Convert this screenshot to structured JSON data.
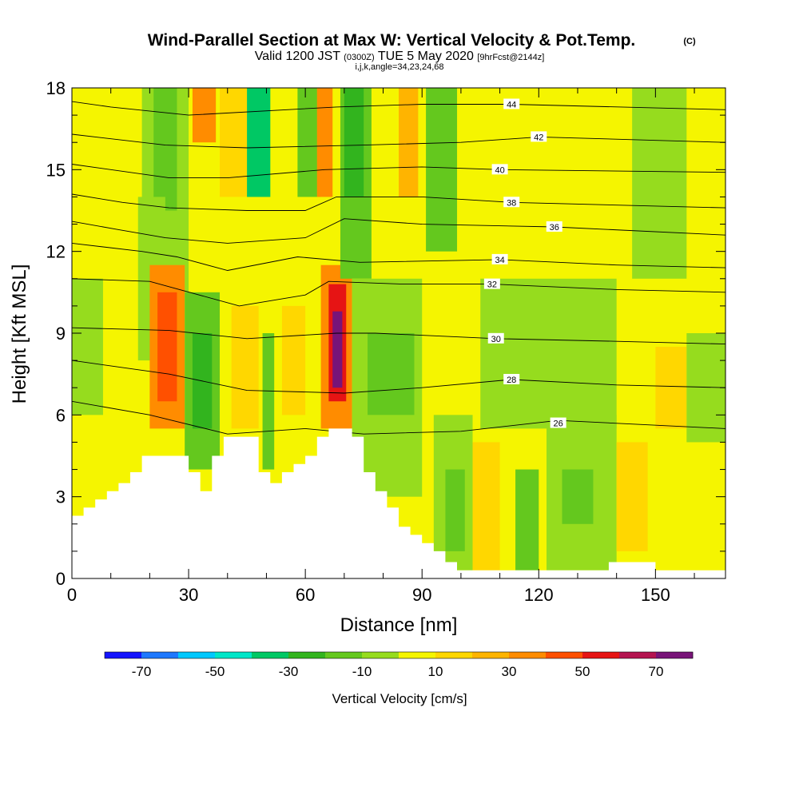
{
  "chart_data": {
    "type": "heatmap",
    "title": "Wind-Parallel Section at Max W: Vertical Velocity & Pot.Temp.",
    "title_mark": "(C)",
    "subtitle_parts": [
      "Valid 1200 JST",
      "(0300Z)",
      "TUE 5 May 2020",
      "[9hrFcst@2144z]"
    ],
    "subtitle2": "i,j,k,angle=34,23,24,68",
    "xlabel": "Distance [nm]",
    "ylabel": "Height [Kft MSL]",
    "xlim": [
      0,
      168
    ],
    "ylim": [
      0,
      18
    ],
    "xticks": [
      0,
      30,
      60,
      90,
      120,
      150
    ],
    "yticks": [
      0,
      3,
      6,
      9,
      12,
      15,
      18
    ],
    "colorbar": {
      "label": "Vertical Velocity [cm/s]",
      "levels": [
        -80,
        -70,
        -60,
        -50,
        -40,
        -30,
        -20,
        -10,
        0,
        10,
        20,
        30,
        40,
        50,
        60,
        70,
        80
      ],
      "tick_values": [
        -70,
        -50,
        -30,
        -10,
        10,
        30,
        50,
        70
      ],
      "tick_labels": [
        "-70",
        "-50",
        "-30",
        "-10",
        "10",
        "30",
        "50",
        "70"
      ],
      "colors": [
        "#1414ff",
        "#1e78ff",
        "#00c8ff",
        "#00e6c8",
        "#00c864",
        "#32b41e",
        "#64c81e",
        "#96dc1e",
        "#f5f500",
        "#ffd700",
        "#ffb400",
        "#ff8c00",
        "#ff5000",
        "#e61414",
        "#b41450",
        "#781478"
      ]
    },
    "terrain": [
      [
        0,
        2.3
      ],
      [
        3,
        2.3
      ],
      [
        3,
        2.6
      ],
      [
        6,
        2.6
      ],
      [
        6,
        2.9
      ],
      [
        9,
        2.9
      ],
      [
        9,
        3.2
      ],
      [
        12,
        3.2
      ],
      [
        12,
        3.5
      ],
      [
        15,
        3.5
      ],
      [
        15,
        3.9
      ],
      [
        18,
        3.9
      ],
      [
        18,
        4.5
      ],
      [
        30,
        4.5
      ],
      [
        30,
        3.9
      ],
      [
        33,
        3.9
      ],
      [
        33,
        3.2
      ],
      [
        36,
        3.2
      ],
      [
        36,
        4.5
      ],
      [
        39,
        4.5
      ],
      [
        39,
        5.2
      ],
      [
        48,
        5.2
      ],
      [
        48,
        3.9
      ],
      [
        51,
        3.9
      ],
      [
        51,
        3.5
      ],
      [
        54,
        3.5
      ],
      [
        54,
        3.9
      ],
      [
        57,
        3.9
      ],
      [
        57,
        4.2
      ],
      [
        60,
        4.2
      ],
      [
        60,
        4.5
      ],
      [
        63,
        4.5
      ],
      [
        63,
        5.2
      ],
      [
        66,
        5.2
      ],
      [
        66,
        5.5
      ],
      [
        72,
        5.5
      ],
      [
        72,
        5.2
      ],
      [
        75,
        5.2
      ],
      [
        75,
        3.9
      ],
      [
        78,
        3.9
      ],
      [
        78,
        3.2
      ],
      [
        81,
        3.2
      ],
      [
        81,
        2.6
      ],
      [
        84,
        2.6
      ],
      [
        84,
        1.9
      ],
      [
        87,
        1.9
      ],
      [
        87,
        1.6
      ],
      [
        90,
        1.6
      ],
      [
        90,
        1.3
      ],
      [
        93,
        1.3
      ],
      [
        93,
        1.0
      ],
      [
        96,
        1.0
      ],
      [
        96,
        0.6
      ],
      [
        99,
        0.6
      ],
      [
        99,
        0.3
      ],
      [
        138,
        0.3
      ],
      [
        138,
        0.6
      ],
      [
        150,
        0.6
      ],
      [
        150,
        0.3
      ],
      [
        168,
        0.3
      ]
    ],
    "theta_contours": [
      {
        "label": "26",
        "label_x": 125,
        "label_y": 5.7,
        "points": [
          [
            0,
            6.5
          ],
          [
            20,
            6.0
          ],
          [
            40,
            5.3
          ],
          [
            60,
            5.5
          ],
          [
            75,
            5.3
          ],
          [
            100,
            5.4
          ],
          [
            125,
            5.8
          ],
          [
            168,
            5.5
          ]
        ]
      },
      {
        "label": "28",
        "label_x": 113,
        "label_y": 7.3,
        "points": [
          [
            0,
            8.0
          ],
          [
            25,
            7.5
          ],
          [
            45,
            6.9
          ],
          [
            70,
            6.8
          ],
          [
            90,
            7.0
          ],
          [
            113,
            7.3
          ],
          [
            140,
            7.1
          ],
          [
            168,
            7.0
          ]
        ]
      },
      {
        "label": "30",
        "label_x": 109,
        "label_y": 8.8,
        "points": [
          [
            0,
            9.2
          ],
          [
            25,
            9.1
          ],
          [
            45,
            8.8
          ],
          [
            68,
            9.0
          ],
          [
            78,
            9.0
          ],
          [
            109,
            8.8
          ],
          [
            140,
            8.7
          ],
          [
            168,
            8.6
          ]
        ]
      },
      {
        "label": "32",
        "label_x": 108,
        "label_y": 10.8,
        "points": [
          [
            0,
            11.0
          ],
          [
            20,
            10.9
          ],
          [
            43,
            10.0
          ],
          [
            60,
            10.4
          ],
          [
            66,
            10.9
          ],
          [
            85,
            10.8
          ],
          [
            108,
            10.8
          ],
          [
            140,
            10.6
          ],
          [
            168,
            10.5
          ]
        ]
      },
      {
        "label": "34",
        "label_x": 110,
        "label_y": 11.7,
        "points": [
          [
            0,
            12.3
          ],
          [
            18,
            12.0
          ],
          [
            27,
            11.8
          ],
          [
            40,
            11.3
          ],
          [
            58,
            11.8
          ],
          [
            74,
            11.6
          ],
          [
            110,
            11.7
          ],
          [
            140,
            11.5
          ],
          [
            168,
            11.4
          ]
        ]
      },
      {
        "label": "36",
        "label_x": 124,
        "label_y": 12.9,
        "points": [
          [
            0,
            13.1
          ],
          [
            12,
            12.8
          ],
          [
            24,
            12.5
          ],
          [
            40,
            12.3
          ],
          [
            60,
            12.5
          ],
          [
            70,
            13.2
          ],
          [
            90,
            13.0
          ],
          [
            124,
            12.9
          ],
          [
            168,
            12.6
          ]
        ]
      },
      {
        "label": "38",
        "label_x": 113,
        "label_y": 13.8,
        "points": [
          [
            0,
            14.1
          ],
          [
            13,
            13.8
          ],
          [
            25,
            13.6
          ],
          [
            45,
            13.5
          ],
          [
            60,
            13.5
          ],
          [
            68,
            14.0
          ],
          [
            90,
            14.0
          ],
          [
            113,
            13.8
          ],
          [
            168,
            13.6
          ]
        ]
      },
      {
        "label": "40",
        "label_x": 110,
        "label_y": 15.0,
        "points": [
          [
            0,
            15.2
          ],
          [
            25,
            14.7
          ],
          [
            40,
            14.7
          ],
          [
            65,
            15.0
          ],
          [
            90,
            15.1
          ],
          [
            110,
            15.0
          ],
          [
            168,
            14.9
          ]
        ]
      },
      {
        "label": "42",
        "label_x": 120,
        "label_y": 16.2,
        "points": [
          [
            0,
            16.3
          ],
          [
            24,
            15.9
          ],
          [
            45,
            15.8
          ],
          [
            75,
            15.9
          ],
          [
            100,
            16.0
          ],
          [
            120,
            16.2
          ],
          [
            168,
            16.0
          ]
        ]
      },
      {
        "label": "44",
        "label_x": 113,
        "label_y": 17.4,
        "points": [
          [
            0,
            17.5
          ],
          [
            10,
            17.3
          ],
          [
            30,
            17.0
          ],
          [
            68,
            17.3
          ],
          [
            90,
            17.4
          ],
          [
            113,
            17.4
          ],
          [
            168,
            17.2
          ]
        ]
      }
    ],
    "velocity_cells": [
      {
        "x": [
          0,
          168
        ],
        "y": [
          0,
          18
        ],
        "value": 5
      },
      {
        "x": [
          0,
          8
        ],
        "y": [
          6,
          18
        ],
        "value": -5
      },
      {
        "x": [
          0,
          12
        ],
        "y": [
          11,
          18
        ],
        "value": 5
      },
      {
        "x": [
          18,
          30
        ],
        "y": [
          10.5,
          18
        ],
        "value": -5
      },
      {
        "x": [
          21,
          27
        ],
        "y": [
          13.5,
          18
        ],
        "value": -15
      },
      {
        "x": [
          17,
          24
        ],
        "y": [
          8,
          14
        ],
        "value": -5
      },
      {
        "x": [
          20,
          29
        ],
        "y": [
          5.5,
          11.5
        ],
        "value": 35
      },
      {
        "x": [
          22,
          27
        ],
        "y": [
          6.5,
          10.5
        ],
        "value": 45
      },
      {
        "x": [
          29,
          38
        ],
        "y": [
          4,
          10.5
        ],
        "value": -15
      },
      {
        "x": [
          31,
          36
        ],
        "y": [
          5.5,
          9
        ],
        "value": -25
      },
      {
        "x": [
          31,
          37
        ],
        "y": [
          16,
          18
        ],
        "value": 35
      },
      {
        "x": [
          38,
          46
        ],
        "y": [
          14,
          18
        ],
        "value": 15
      },
      {
        "x": [
          45,
          51
        ],
        "y": [
          14,
          18
        ],
        "value": -35
      },
      {
        "x": [
          41,
          48
        ],
        "y": [
          5.5,
          10
        ],
        "value": 15
      },
      {
        "x": [
          49,
          52
        ],
        "y": [
          4,
          9
        ],
        "value": -15
      },
      {
        "x": [
          54,
          60
        ],
        "y": [
          6,
          10
        ],
        "value": 15
      },
      {
        "x": [
          58,
          64
        ],
        "y": [
          14,
          18
        ],
        "value": -15
      },
      {
        "x": [
          63,
          67
        ],
        "y": [
          14,
          18
        ],
        "value": 35
      },
      {
        "x": [
          64,
          72
        ],
        "y": [
          5.5,
          11.5
        ],
        "value": 35
      },
      {
        "x": [
          66,
          70.5
        ],
        "y": [
          6.5,
          10.8
        ],
        "value": 55
      },
      {
        "x": [
          67,
          69.5
        ],
        "y": [
          7,
          9.8
        ],
        "value": 75
      },
      {
        "x": [
          69,
          77
        ],
        "y": [
          11,
          18
        ],
        "value": -15
      },
      {
        "x": [
          70,
          75
        ],
        "y": [
          14,
          18
        ],
        "value": -25
      },
      {
        "x": [
          72,
          90
        ],
        "y": [
          3,
          11
        ],
        "value": -5
      },
      {
        "x": [
          76,
          88
        ],
        "y": [
          6,
          9
        ],
        "value": -15
      },
      {
        "x": [
          84,
          89
        ],
        "y": [
          14,
          18
        ],
        "value": 25
      },
      {
        "x": [
          91,
          99
        ],
        "y": [
          12,
          18
        ],
        "value": -15
      },
      {
        "x": [
          93,
          103
        ],
        "y": [
          0.3,
          6
        ],
        "value": -5
      },
      {
        "x": [
          96,
          101
        ],
        "y": [
          1,
          4
        ],
        "value": -15
      },
      {
        "x": [
          103,
          110
        ],
        "y": [
          0.3,
          5
        ],
        "value": 15
      },
      {
        "x": [
          105,
          140
        ],
        "y": [
          5.5,
          11
        ],
        "value": -5
      },
      {
        "x": [
          114,
          120
        ],
        "y": [
          0.3,
          4
        ],
        "value": -15
      },
      {
        "x": [
          122,
          140
        ],
        "y": [
          0.3,
          6
        ],
        "value": -5
      },
      {
        "x": [
          126,
          134
        ],
        "y": [
          2,
          4
        ],
        "value": -15
      },
      {
        "x": [
          140,
          148
        ],
        "y": [
          1,
          5
        ],
        "value": 15
      },
      {
        "x": [
          150,
          158
        ],
        "y": [
          5.5,
          8.5
        ],
        "value": 15
      },
      {
        "x": [
          158,
          168
        ],
        "y": [
          5,
          9
        ],
        "value": -10
      },
      {
        "x": [
          144,
          158
        ],
        "y": [
          11,
          18
        ],
        "value": -5
      }
    ]
  }
}
